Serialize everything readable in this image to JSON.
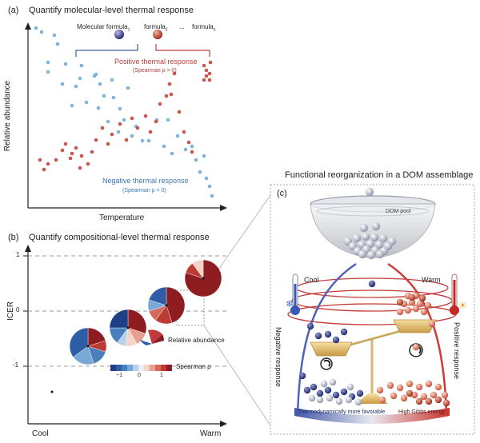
{
  "panel_a": {
    "label": "(a)",
    "title": "Quantify molecular-level thermal response",
    "y_axis": "Relative abundance",
    "x_axis": "Temperature",
    "molecule_1": "Molecular formula",
    "molecule_1_sub": "1",
    "molecule_2": "formula",
    "molecule_2_sub": "2",
    "ellipsis": "...",
    "molecule_n": "formula",
    "molecule_n_sub": "n",
    "positive": "Positive thermal response",
    "positive_stat": "(Spearman ρ > 0)",
    "negative": "Negative thermal response",
    "negative_stat": "(Spearman ρ < 0)"
  },
  "panel_b": {
    "label": "(b)",
    "title": "Quantify compositional-level thermal response",
    "y_axis": "ICER",
    "y_tick_top": "1",
    "y_tick_mid": "0",
    "y_tick_bottom": "-1",
    "x_left": "Cool",
    "x_right": "Warm",
    "pie_legend": "Relative abundance",
    "scale_min": "−1",
    "scale_mid": "0",
    "scale_max": "1",
    "scale_label": "Spearman ρ",
    "scale_colors": [
      "#1f3f86",
      "#2f5da5",
      "#4a7fbf",
      "#7aa8d6",
      "#b7d1ea",
      "#e9eef4",
      "#f4d3c8",
      "#e7a090",
      "#d46b5e",
      "#bd3b35",
      "#8e1d22"
    ]
  },
  "panel_c": {
    "label": "(c)",
    "title": "Functional reorganization in a DOM assemblage",
    "pool": "DOM pool",
    "cool": "Cool",
    "warm": "Warm",
    "negative": "Negative response",
    "positive": "Positive response",
    "bar_left": "Thermodynamically more favorable",
    "bar_right": "High Gibbs energy"
  },
  "colors": {
    "red": "#c8574f",
    "blue": "#7fb5dd",
    "dark_red": "#8e1d22",
    "dark_blue": "#1f3f86"
  }
}
